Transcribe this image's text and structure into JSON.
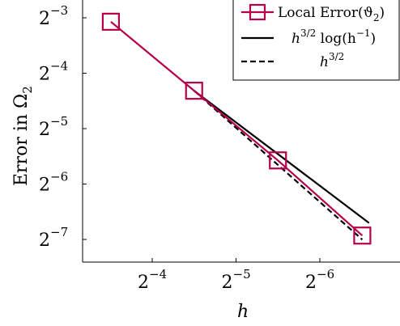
{
  "chart_data": {
    "type": "line",
    "xscale": "log2-reversed",
    "yscale": "log2",
    "xlabel": "h",
    "ylabel": "Error in Ω",
    "ylabel_sub": "2",
    "x_ticks": [
      {
        "base": "2",
        "exp": "−4",
        "value": 0.0625
      },
      {
        "base": "2",
        "exp": "−5",
        "value": 0.03125
      },
      {
        "base": "2",
        "exp": "−6",
        "value": 0.015625
      }
    ],
    "y_ticks": [
      {
        "base": "2",
        "exp": "−3",
        "value": 0.125
      },
      {
        "base": "2",
        "exp": "−4",
        "value": 0.0625
      },
      {
        "base": "2",
        "exp": "−5",
        "value": 0.03125
      },
      {
        "base": "2",
        "exp": "−6",
        "value": 0.015625
      },
      {
        "base": "2",
        "exp": "−7",
        "value": 0.0078125
      }
    ],
    "grid": false,
    "legend_position": "top-right",
    "legend": [
      {
        "label": "Local Error(ϑ",
        "label_sub": "2",
        "label_tail": ")",
        "style": "solid-square-markers",
        "color": "#b5004b"
      },
      {
        "label": "h",
        "label_sup": "3/2",
        "label_tail": " log(h",
        "label_sup2": "−1",
        "label_tail2": ")",
        "style": "solid",
        "color": "#000000"
      },
      {
        "label": "h",
        "label_sup": "3/2",
        "style": "dashed",
        "color": "#000000"
      }
    ],
    "series": [
      {
        "name": "Local Error(ϑ2)",
        "color": "#b5004b",
        "markers": true,
        "x": [
          0.088,
          0.0442,
          0.0221,
          0.011
        ],
        "y": [
          0.119,
          0.0502,
          0.021,
          0.0082
        ]
      },
      {
        "name": "h^{3/2} log(h^{-1})",
        "color": "#000000",
        "markers": false,
        "x": [
          0.0442,
          0.0104
        ],
        "y": [
          0.0502,
          0.0096
        ]
      },
      {
        "name": "h^{3/2}",
        "color": "#000000",
        "markers": false,
        "dashed": true,
        "x": [
          0.0442,
          0.011
        ],
        "y": [
          0.0502,
          0.0078
        ]
      }
    ]
  }
}
